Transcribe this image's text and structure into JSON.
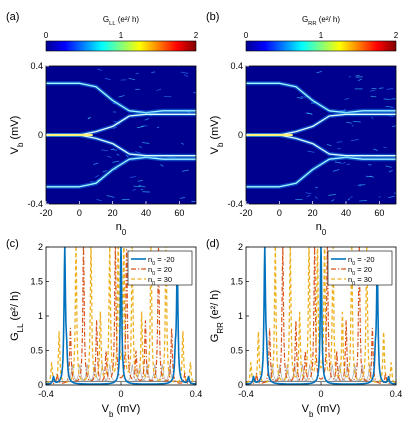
{
  "chart_data": [
    {
      "panel": "(a)",
      "type": "heatmap",
      "colorbar": {
        "title": "G_LL (e²/ h)",
        "ticks": [
          "0",
          "1",
          "2"
        ],
        "range": [
          0,
          2
        ]
      },
      "xlabel": "n₀",
      "ylabel": "V_b (mV)",
      "xlim": [
        -20,
        70
      ],
      "ylim": [
        -0.4,
        0.4
      ],
      "xticks": [
        "-20",
        "0",
        "20",
        "40",
        "60"
      ],
      "yticks": [
        "-0.4",
        "0",
        "0.4"
      ],
      "bands": [
        {
          "x": [
            -20,
            0,
            10,
            20,
            30,
            40,
            50,
            60,
            70
          ],
          "y": [
            0.3,
            0.3,
            0.28,
            0.2,
            0.14,
            0.13,
            0.14,
            0.14,
            0.14
          ]
        },
        {
          "x": [
            -20,
            0,
            10,
            20,
            30,
            40,
            50,
            60,
            70
          ],
          "y": [
            -0.3,
            -0.3,
            -0.28,
            -0.2,
            -0.14,
            -0.13,
            -0.14,
            -0.14,
            -0.14
          ]
        },
        {
          "x": [
            -20,
            0,
            10,
            20,
            30,
            40,
            50,
            60,
            70
          ],
          "y": [
            0.0,
            0.0,
            0.02,
            0.05,
            0.11,
            0.12,
            0.12,
            0.12,
            0.12
          ]
        },
        {
          "x": [
            -20,
            0,
            10,
            20,
            30,
            40,
            50,
            60,
            70
          ],
          "y": [
            0.0,
            0.0,
            -0.02,
            -0.05,
            -0.11,
            -0.12,
            -0.12,
            -0.12,
            -0.12
          ]
        }
      ]
    },
    {
      "panel": "(b)",
      "type": "heatmap",
      "colorbar": {
        "title": "G_RR (e²/ h)",
        "ticks": [
          "0",
          "1",
          "2"
        ],
        "range": [
          0,
          2
        ]
      },
      "xlabel": "n₀",
      "ylabel": "V_b (mV)",
      "xlim": [
        -20,
        70
      ],
      "ylim": [
        -0.4,
        0.4
      ],
      "xticks": [
        "-20",
        "0",
        "20",
        "40",
        "60"
      ],
      "yticks": [
        "-0.4",
        "0",
        "0.4"
      ]
    },
    {
      "panel": "(c)",
      "type": "line",
      "xlabel": "V_b (mV)",
      "ylabel": "G_LL (e²/ h)",
      "xlim": [
        -0.4,
        0.4
      ],
      "ylim": [
        0,
        2
      ],
      "xticks": [
        "-0.4",
        "0",
        "0.4"
      ],
      "yticks": [
        "0",
        "0.5",
        "1",
        "1.5",
        "2"
      ],
      "legend_position": "top-right",
      "series": [
        {
          "name": "n₀ = -20",
          "color": "#0072bd",
          "style": "solid",
          "peaks": [
            [
              -0.3,
              1.95
            ],
            [
              -0.29,
              0.35
            ],
            [
              0.0,
              2.0
            ],
            [
              0.29,
              0.35
            ],
            [
              0.3,
              1.75
            ],
            [
              -0.36,
              0.1
            ],
            [
              0.36,
              0.1
            ]
          ]
        },
        {
          "name": "n₀ = 20",
          "color": "#d95319",
          "style": "dashdot",
          "peaks": [
            [
              -0.34,
              0.15
            ],
            [
              -0.27,
              0.8
            ],
            [
              -0.2,
              2.0
            ],
            [
              -0.13,
              0.9
            ],
            [
              -0.08,
              0.45
            ],
            [
              -0.03,
              2.0
            ],
            [
              0.03,
              2.0
            ],
            [
              0.08,
              0.45
            ],
            [
              0.13,
              0.9
            ],
            [
              0.2,
              2.0
            ],
            [
              0.27,
              0.8
            ],
            [
              0.34,
              0.15
            ]
          ]
        },
        {
          "name": "n₀ = 30",
          "color": "#edb120",
          "style": "dashed",
          "peaks": [
            [
              -0.37,
              0.3
            ],
            [
              -0.33,
              0.75
            ],
            [
              -0.24,
              2.0
            ],
            [
              -0.16,
              2.0
            ],
            [
              -0.11,
              1.0
            ],
            [
              -0.06,
              2.0
            ],
            [
              -0.015,
              2.0
            ],
            [
              0.015,
              2.0
            ],
            [
              0.06,
              2.0
            ],
            [
              0.11,
              1.0
            ],
            [
              0.16,
              2.0
            ],
            [
              0.24,
              2.0
            ],
            [
              0.33,
              0.75
            ],
            [
              0.37,
              0.3
            ]
          ]
        }
      ]
    },
    {
      "panel": "(d)",
      "type": "line",
      "xlabel": "V_b (mV)",
      "ylabel": "G_RR (e²/ h)",
      "xlim": [
        -0.4,
        0.4
      ],
      "ylim": [
        0,
        2
      ],
      "xticks": [
        "-0.4",
        "0",
        "0.4"
      ],
      "yticks": [
        "0",
        "0.5",
        "1",
        "1.5",
        "2"
      ],
      "legend_position": "top-right",
      "series": [
        {
          "name": "n₀ = -20",
          "color": "#0072bd",
          "style": "solid"
        },
        {
          "name": "n₀ = 20",
          "color": "#d95319",
          "style": "dashdot"
        },
        {
          "name": "n₀ = 30",
          "color": "#edb120",
          "style": "dashed"
        }
      ]
    }
  ]
}
